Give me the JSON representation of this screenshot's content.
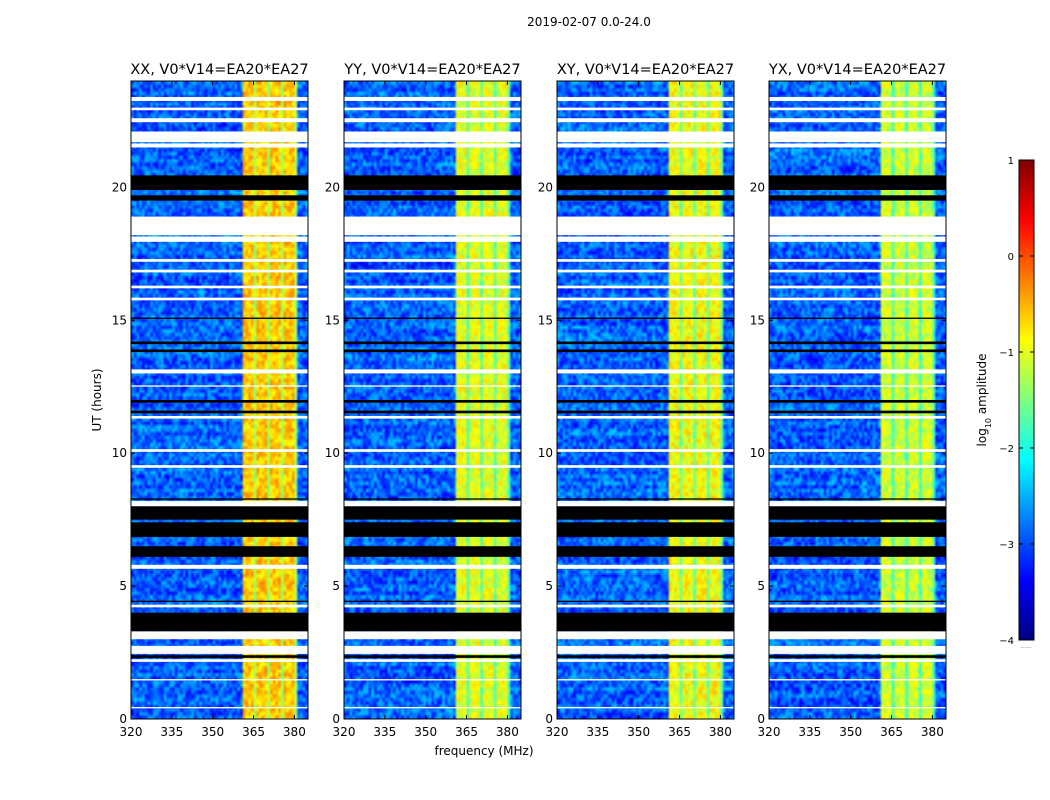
{
  "suptitle": "2019-02-07 0.0-24.0",
  "colors": {
    "background": "#ffffff",
    "flagged_row": "#000000",
    "missing_row": "#ffffff",
    "jet_stops": [
      "#00007f",
      "#0000ff",
      "#007fff",
      "#00ffff",
      "#7fff7f",
      "#ffff00",
      "#ff7f00",
      "#ff0000",
      "#7f0000"
    ]
  },
  "chart_data": {
    "type": "heatmap",
    "panels": [
      {
        "title": "XX, V0*V14=EA20*EA27",
        "pol": "XX",
        "baseline": "V0*V14=EA20*EA27"
      },
      {
        "title": "YY, V0*V14=EA20*EA27",
        "pol": "YY",
        "baseline": "V0*V14=EA20*EA27"
      },
      {
        "title": "XY, V0*V14=EA20*EA27",
        "pol": "XY",
        "baseline": "V0*V14=EA20*EA27"
      },
      {
        "title": "YX, V0*V14=EA20*EA27",
        "pol": "YX",
        "baseline": "V0*V14=EA20*EA27"
      }
    ],
    "xlabel": "frequency (MHz)",
    "ylabel": "UT (hours)",
    "xlim": [
      320,
      385
    ],
    "ylim": [
      0,
      24
    ],
    "xticks": [
      320,
      335,
      350,
      365,
      380
    ],
    "xtick_labels": [
      "320",
      "335",
      "350",
      "365",
      "380"
    ],
    "yticks": [
      0,
      5,
      10,
      15,
      20
    ],
    "ytick_labels": [
      "0",
      "5",
      "10",
      "15",
      "20"
    ],
    "colorbar": {
      "label_main": "log",
      "label_sub": "10",
      "label_rest": " amplitude",
      "range": [
        -4,
        1
      ],
      "ticks": [
        1,
        0,
        -1,
        -2,
        -3,
        -4
      ],
      "tick_labels": [
        "1",
        "0",
        "−1",
        "−2",
        "−3",
        "−4"
      ],
      "colormap": "jet",
      "footnote": "......"
    },
    "bright_band_MHz": [
      361,
      381
    ],
    "band_subchannels_MHz": [
      [
        361,
        365
      ],
      [
        366,
        370
      ],
      [
        371,
        375
      ],
      [
        376,
        380
      ]
    ],
    "background_log_amplitude": -2.9,
    "band_log_amplitude": {
      "XX": -0.6,
      "YY": -1.0,
      "XY": -0.9,
      "YX": -1.1
    },
    "missing_hours": [
      [
        0.4,
        0.45
      ],
      [
        1.45,
        1.5
      ],
      [
        2.15,
        2.25
      ],
      [
        2.45,
        2.75
      ],
      [
        3.0,
        3.3
      ],
      [
        4.2,
        4.3
      ],
      [
        5.65,
        5.8
      ],
      [
        8.0,
        8.2
      ],
      [
        9.45,
        9.55
      ],
      [
        10.05,
        10.15
      ],
      [
        11.3,
        11.4
      ],
      [
        12.5,
        12.55
      ],
      [
        13.0,
        13.15
      ],
      [
        15.75,
        15.85
      ],
      [
        16.2,
        16.3
      ],
      [
        16.8,
        16.9
      ],
      [
        17.2,
        17.3
      ],
      [
        17.95,
        18.15
      ],
      [
        18.2,
        18.9
      ],
      [
        21.5,
        21.65
      ],
      [
        21.7,
        22.1
      ],
      [
        22.45,
        22.6
      ],
      [
        22.9,
        23.0
      ],
      [
        23.25,
        23.4
      ]
    ],
    "flagged_hours": [
      [
        2.3,
        2.4
      ],
      [
        3.3,
        4.0
      ],
      [
        4.4,
        4.45
      ],
      [
        6.1,
        6.5
      ],
      [
        6.85,
        7.4
      ],
      [
        7.5,
        8.0
      ],
      [
        8.25,
        8.3
      ],
      [
        11.5,
        11.6
      ],
      [
        11.9,
        12.0
      ],
      [
        13.8,
        13.9
      ],
      [
        14.1,
        14.2
      ],
      [
        15.05,
        15.1
      ],
      [
        19.5,
        19.7
      ],
      [
        19.9,
        20.45
      ]
    ]
  }
}
